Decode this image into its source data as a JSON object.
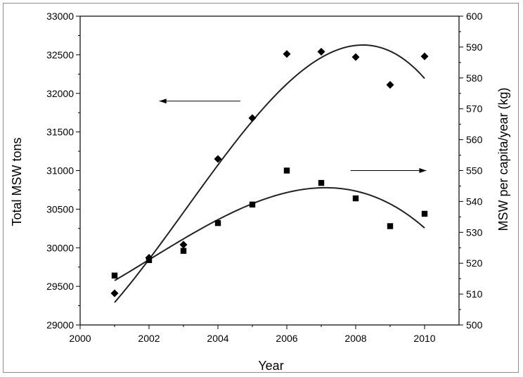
{
  "chart_data": {
    "type": "scatter",
    "xlabel": "Year",
    "ylabel_left": "Total MSW tons",
    "ylabel_right": "MSW per capita/year (kg)",
    "xlim": [
      2000,
      2011
    ],
    "ylim_left": [
      29000,
      33000
    ],
    "ylim_right": [
      500,
      600
    ],
    "x_ticks": [
      2000,
      2002,
      2004,
      2006,
      2008,
      2010
    ],
    "y_left_ticks": [
      29000,
      29500,
      30000,
      30500,
      31000,
      31500,
      32000,
      32500,
      33000
    ],
    "y_right_ticks": [
      500,
      510,
      520,
      530,
      540,
      550,
      560,
      570,
      580,
      590,
      600
    ],
    "grid": false,
    "series": [
      {
        "axis": "left",
        "marker": "diamond",
        "x": [
          2001,
          2002,
          2003,
          2004,
          2005,
          2006,
          2007,
          2008,
          2009,
          2010
        ],
        "y": [
          29410,
          29870,
          30040,
          31150,
          31680,
          32510,
          32540,
          32470,
          32110,
          32480
        ],
        "fit": "polynomial"
      },
      {
        "axis": "right",
        "marker": "square",
        "x": [
          2001,
          2002,
          2003,
          2004,
          2005,
          2006,
          2007,
          2008,
          2009,
          2010
        ],
        "y": [
          516,
          521,
          524,
          533,
          539,
          550,
          546,
          541,
          532,
          536
        ],
        "fit": "polynomial"
      }
    ],
    "arrows": [
      {
        "points_to": "left",
        "series_axis": "left"
      },
      {
        "points_to": "right",
        "series_axis": "right"
      }
    ]
  }
}
